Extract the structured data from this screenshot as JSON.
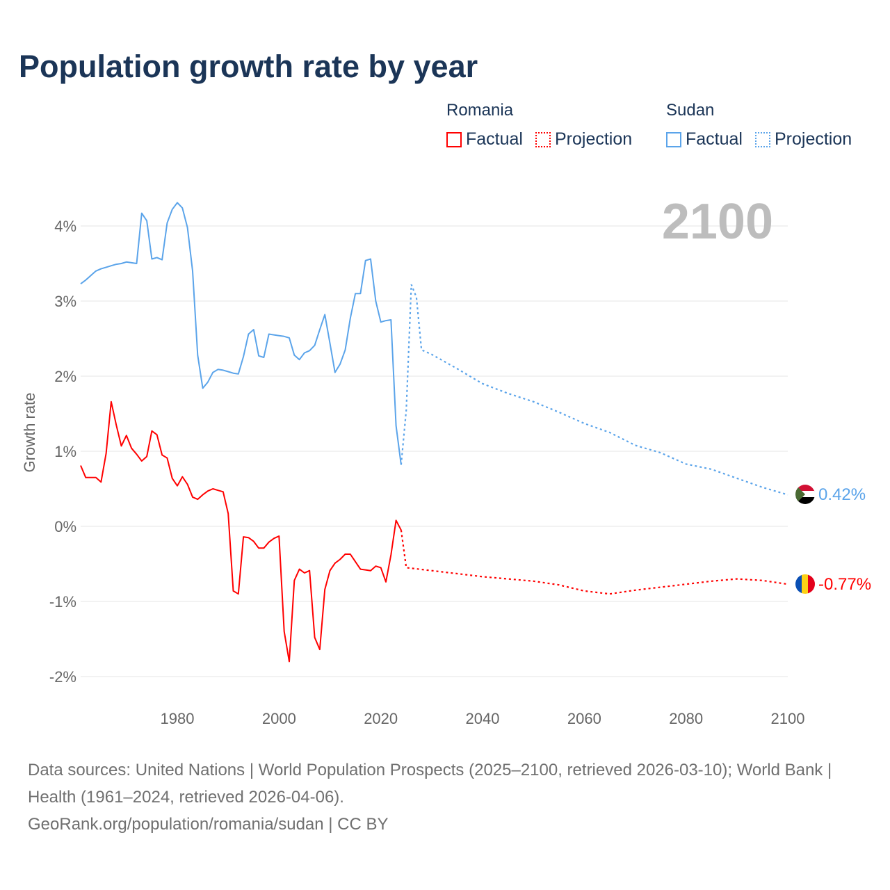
{
  "title": "Population growth rate by year",
  "year_label": "2100",
  "legend": {
    "groups": [
      {
        "name": "Romania",
        "color": "#ff0000",
        "factual": "Factual",
        "projection": "Projection"
      },
      {
        "name": "Sudan",
        "color": "#5ba4ea",
        "factual": "Factual",
        "projection": "Projection"
      }
    ]
  },
  "footer": {
    "sources": "Data sources: United Nations | World Population Prospects (2025–2100, retrieved 2026-03-10); World Bank | Health (1961–2024, retrieved 2026-04-06).",
    "link": "GeoRank.org/population/romania/sudan | CC BY"
  },
  "chart_data": {
    "type": "line",
    "title": "Population growth rate by year",
    "xlabel": "",
    "ylabel": "Growth rate",
    "xlim": [
      1961,
      2100
    ],
    "ylim": [
      -2.2,
      4.5
    ],
    "x_ticks": [
      1980,
      2000,
      2020,
      2040,
      2060,
      2080,
      2100
    ],
    "y_ticks": [
      {
        "v": 4,
        "label": "4%"
      },
      {
        "v": 3,
        "label": "3%"
      },
      {
        "v": 2,
        "label": "2%"
      },
      {
        "v": 1,
        "label": "1%"
      },
      {
        "v": 0,
        "label": "0%"
      },
      {
        "v": -1,
        "label": "-1%"
      },
      {
        "v": -2,
        "label": "-2%"
      }
    ],
    "grid": true,
    "series": [
      {
        "name": "Sudan",
        "color": "#5ba4ea",
        "end_label": "0.42%",
        "factual_start": 1961,
        "factual": [
          3.23,
          3.28,
          3.34,
          3.4,
          3.43,
          3.45,
          3.47,
          3.49,
          3.5,
          3.52,
          3.51,
          3.5,
          4.17,
          4.07,
          3.56,
          3.58,
          3.55,
          4.04,
          4.22,
          4.31,
          4.24,
          3.98,
          3.4,
          2.28,
          1.84,
          1.92,
          2.05,
          2.09,
          2.08,
          2.06,
          2.04,
          2.03,
          2.26,
          2.56,
          2.62,
          2.27,
          2.25,
          2.56,
          2.55,
          2.54,
          2.53,
          2.51,
          2.28,
          2.22,
          2.31,
          2.34,
          2.41,
          2.62,
          2.82,
          2.44,
          2.05,
          2.16,
          2.35,
          2.77,
          3.1,
          3.1,
          3.54,
          3.56,
          3.0,
          2.72,
          2.74,
          2.75,
          1.34,
          0.82
        ],
        "projection": [
          [
            2024,
            0.82
          ],
          [
            2025,
            1.55
          ],
          [
            2026,
            3.22
          ],
          [
            2027,
            3.05
          ],
          [
            2028,
            2.35
          ],
          [
            2030,
            2.29
          ],
          [
            2035,
            2.1
          ],
          [
            2040,
            1.9
          ],
          [
            2045,
            1.77
          ],
          [
            2050,
            1.66
          ],
          [
            2055,
            1.52
          ],
          [
            2060,
            1.37
          ],
          [
            2065,
            1.25
          ],
          [
            2070,
            1.08
          ],
          [
            2075,
            0.98
          ],
          [
            2080,
            0.83
          ],
          [
            2085,
            0.76
          ],
          [
            2090,
            0.64
          ],
          [
            2095,
            0.52
          ],
          [
            2100,
            0.42
          ]
        ]
      },
      {
        "name": "Romania",
        "color": "#ff0000",
        "end_label": "-0.77%",
        "factual_start": 1961,
        "factual": [
          0.81,
          0.65,
          0.65,
          0.65,
          0.59,
          0.97,
          1.66,
          1.35,
          1.07,
          1.21,
          1.04,
          0.96,
          0.87,
          0.93,
          1.27,
          1.22,
          0.95,
          0.91,
          0.64,
          0.54,
          0.66,
          0.56,
          0.39,
          0.36,
          0.42,
          0.47,
          0.5,
          0.48,
          0.46,
          0.17,
          -0.86,
          -0.9,
          -0.14,
          -0.15,
          -0.2,
          -0.29,
          -0.29,
          -0.21,
          -0.16,
          -0.13,
          -1.4,
          -1.8,
          -0.72,
          -0.57,
          -0.62,
          -0.59,
          -1.48,
          -1.64,
          -0.84,
          -0.59,
          -0.49,
          -0.44,
          -0.37,
          -0.37,
          -0.47,
          -0.57,
          -0.58,
          -0.59,
          -0.53,
          -0.55,
          -0.74,
          -0.38,
          0.08,
          -0.05
        ],
        "projection": [
          [
            2024,
            -0.05
          ],
          [
            2025,
            -0.55
          ],
          [
            2030,
            -0.59
          ],
          [
            2035,
            -0.63
          ],
          [
            2040,
            -0.67
          ],
          [
            2045,
            -0.7
          ],
          [
            2050,
            -0.73
          ],
          [
            2055,
            -0.78
          ],
          [
            2060,
            -0.86
          ],
          [
            2065,
            -0.9
          ],
          [
            2070,
            -0.85
          ],
          [
            2075,
            -0.81
          ],
          [
            2080,
            -0.77
          ],
          [
            2085,
            -0.73
          ],
          [
            2090,
            -0.7
          ],
          [
            2095,
            -0.72
          ],
          [
            2100,
            -0.77
          ]
        ]
      }
    ]
  }
}
